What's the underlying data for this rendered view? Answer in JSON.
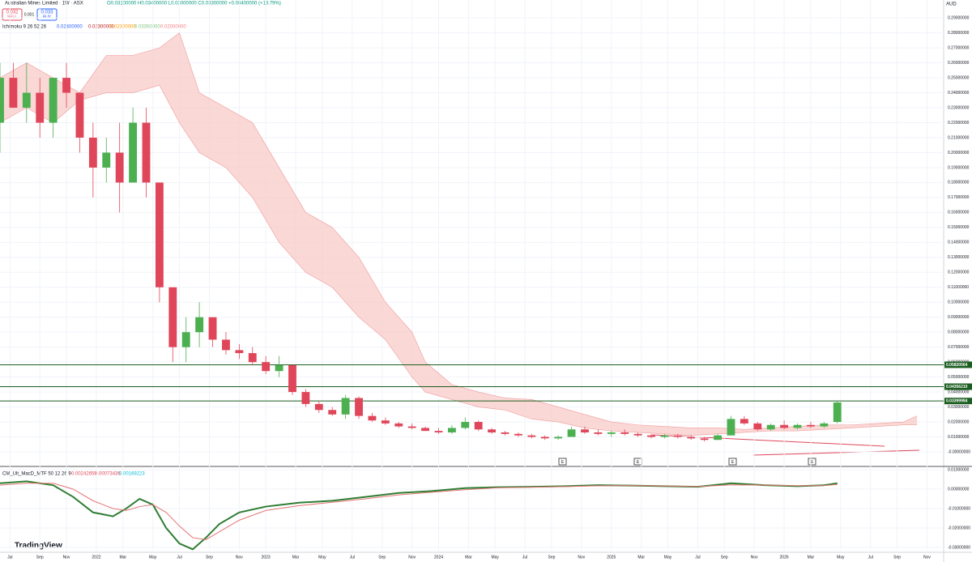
{
  "header": {
    "title": "Australian Mines Limited · 1W · ASX",
    "ohlc": "O0.03100000 H0.03400000 L0.03000000 C0.03300000 +0.00400000 (+13.79%)",
    "sell_price": "0.032",
    "sell": "SELL",
    "spread": "0.001",
    "buy_price": "0.033",
    "buy": "BUY",
    "currency": "AUD"
  },
  "ichimoku_legend": {
    "name": "Ichimoku 9 26 52 26",
    "values": [
      "0.02400000",
      "0.02300000",
      "0.02300000",
      "0.03350000",
      "0.02000000"
    ]
  },
  "macd_legend": {
    "name": "CM_Ult_MacD_MTF 50 12 26 9",
    "values": [
      "0.00242659",
      "0.00073436",
      "0.00169223"
    ]
  },
  "events": [
    "E",
    "E",
    "E",
    "E"
  ],
  "logo": "TradingView",
  "chart_data": [
    {
      "type": "candlestick",
      "up_color": "#4caf50",
      "down_color": "#e0465a",
      "xlim": [
        0,
        284
      ],
      "ylim": [
        -0.0092,
        0.302
      ],
      "xticks": [
        {
          "value": 3,
          "label": "Jul"
        },
        {
          "value": 12,
          "label": "Sep"
        },
        {
          "value": 20,
          "label": "Nov"
        },
        {
          "value": 29,
          "label": "2022"
        },
        {
          "value": 37,
          "label": "Mar"
        },
        {
          "value": 46,
          "label": "May"
        },
        {
          "value": 54,
          "label": "Jul"
        },
        {
          "value": 63,
          "label": "Sep"
        },
        {
          "value": 72,
          "label": "Nov"
        },
        {
          "value": 80,
          "label": "2023"
        },
        {
          "value": 89,
          "label": "Mar"
        },
        {
          "value": 97,
          "label": "May"
        },
        {
          "value": 106,
          "label": "Jul"
        },
        {
          "value": 115,
          "label": "Sep"
        },
        {
          "value": 124,
          "label": "Nov"
        },
        {
          "value": 132,
          "label": "2024"
        },
        {
          "value": 141,
          "label": "Mar"
        },
        {
          "value": 149,
          "label": "May"
        },
        {
          "value": 158,
          "label": "Jul"
        },
        {
          "value": 166,
          "label": "Sep"
        },
        {
          "value": 175,
          "label": "Nov"
        },
        {
          "value": 184,
          "label": "2025"
        },
        {
          "value": 193,
          "label": "Mar"
        },
        {
          "value": 201,
          "label": "May"
        },
        {
          "value": 210,
          "label": "Jul"
        },
        {
          "value": 218,
          "label": "Sep"
        },
        {
          "value": 227,
          "label": "Nov"
        },
        {
          "value": 236,
          "label": "2026"
        },
        {
          "value": 244,
          "label": "Mar"
        },
        {
          "value": 253,
          "label": "May"
        },
        {
          "value": 262,
          "label": "Jul"
        },
        {
          "value": 270,
          "label": "Sep"
        },
        {
          "value": 279,
          "label": "Nov"
        }
      ],
      "yticks": [
        {
          "value": 0.29,
          "label": "0.29000000"
        },
        {
          "value": 0.28,
          "label": "0.28000000"
        },
        {
          "value": 0.27,
          "label": "0.27000000"
        },
        {
          "value": 0.26,
          "label": "0.26000000"
        },
        {
          "value": 0.25,
          "label": "0.25000000"
        },
        {
          "value": 0.24,
          "label": "0.24000000"
        },
        {
          "value": 0.23,
          "label": "0.23000000"
        },
        {
          "value": 0.22,
          "label": "0.22000000"
        },
        {
          "value": 0.21,
          "label": "0.21000000"
        },
        {
          "value": 0.2,
          "label": "0.20000000"
        },
        {
          "value": 0.19,
          "label": "0.19000000"
        },
        {
          "value": 0.18,
          "label": "0.18000000"
        },
        {
          "value": 0.17,
          "label": "0.17000000"
        },
        {
          "value": 0.16,
          "label": "0.16000000"
        },
        {
          "value": 0.15,
          "label": "0.15000000"
        },
        {
          "value": 0.14,
          "label": "0.14000000"
        },
        {
          "value": 0.13,
          "label": "0.13000000"
        },
        {
          "value": 0.12,
          "label": "0.12000000"
        },
        {
          "value": 0.11,
          "label": "0.11000000"
        },
        {
          "value": 0.1,
          "label": "0.10000000"
        },
        {
          "value": 0.09,
          "label": "0.09000000"
        },
        {
          "value": 0.08,
          "label": "0.08000000"
        },
        {
          "value": 0.07,
          "label": "0.07000000"
        },
        {
          "value": 0.06,
          "label": "0.06000000"
        },
        {
          "value": 0.05,
          "label": "0.05000000"
        },
        {
          "value": 0.04,
          "label": "0.04000000"
        },
        {
          "value": 0.03,
          "label": "0.03000000"
        },
        {
          "value": 0.02,
          "label": "0.02000000"
        },
        {
          "value": 0.01,
          "label": "0.01000000"
        },
        {
          "value": 0,
          "label": "-0.00000000"
        }
      ],
      "levels": [
        0.05820564,
        {
          "value": 0.0435621,
          "label": "0.04356210"
        },
        0.03399994
      ],
      "level_color": "#1b5e20",
      "x": [
        0,
        4,
        8,
        12,
        16,
        20,
        24,
        28,
        32,
        36,
        40,
        44,
        48,
        52,
        56,
        60,
        64,
        68,
        72,
        76,
        80,
        84,
        88,
        92,
        96,
        100,
        104,
        108,
        112,
        116,
        120,
        124,
        128,
        132,
        136,
        140,
        144,
        148,
        152,
        156,
        160,
        164,
        168,
        172,
        176,
        180,
        184,
        188,
        192,
        196,
        200,
        204,
        208,
        212,
        216,
        220,
        224,
        228,
        232,
        236,
        240,
        244,
        248,
        252
      ],
      "open": [
        0.22,
        0.25,
        0.23,
        0.24,
        0.22,
        0.25,
        0.24,
        0.21,
        0.19,
        0.2,
        0.18,
        0.22,
        0.18,
        0.11,
        0.07,
        0.08,
        0.09,
        0.075,
        0.068,
        0.066,
        0.06,
        0.054,
        0.058,
        0.04,
        0.032,
        0.028,
        0.025,
        0.036,
        0.024,
        0.021,
        0.019,
        0.017,
        0.016,
        0.014,
        0.013,
        0.016,
        0.02,
        0.015,
        0.013,
        0.012,
        0.011,
        0.01,
        0.009,
        0.01,
        0.015,
        0.013,
        0.012,
        0.013,
        0.012,
        0.011,
        0.01,
        0.011,
        0.01,
        0.009,
        0.008,
        0.011,
        0.022,
        0.019,
        0.015,
        0.018,
        0.016,
        0.018,
        0.017,
        0.02
      ],
      "high": [
        0.26,
        0.26,
        0.26,
        0.25,
        0.25,
        0.26,
        0.24,
        0.22,
        0.21,
        0.22,
        0.23,
        0.23,
        0.18,
        0.11,
        0.09,
        0.1,
        0.09,
        0.08,
        0.072,
        0.07,
        0.064,
        0.064,
        0.058,
        0.042,
        0.034,
        0.03,
        0.038,
        0.037,
        0.026,
        0.023,
        0.02,
        0.019,
        0.017,
        0.016,
        0.018,
        0.023,
        0.021,
        0.016,
        0.014,
        0.013,
        0.012,
        0.011,
        0.011,
        0.017,
        0.017,
        0.015,
        0.014,
        0.015,
        0.013,
        0.012,
        0.012,
        0.012,
        0.011,
        0.01,
        0.012,
        0.024,
        0.024,
        0.02,
        0.019,
        0.021,
        0.019,
        0.02,
        0.02,
        0.034
      ],
      "low": [
        0.2,
        0.23,
        0.22,
        0.21,
        0.21,
        0.23,
        0.2,
        0.17,
        0.18,
        0.16,
        0.18,
        0.17,
        0.1,
        0.06,
        0.06,
        0.07,
        0.07,
        0.065,
        0.062,
        0.058,
        0.052,
        0.05,
        0.038,
        0.03,
        0.026,
        0.024,
        0.022,
        0.022,
        0.02,
        0.018,
        0.016,
        0.015,
        0.014,
        0.012,
        0.012,
        0.015,
        0.014,
        0.012,
        0.011,
        0.01,
        0.009,
        0.008,
        0.008,
        0.01,
        0.012,
        0.011,
        0.01,
        0.011,
        0.01,
        0.009,
        0.009,
        0.009,
        0.008,
        0.007,
        0.008,
        0.011,
        0.018,
        0.014,
        0.014,
        0.015,
        0.015,
        0.016,
        0.016,
        0.019
      ],
      "close": [
        0.25,
        0.23,
        0.24,
        0.22,
        0.25,
        0.24,
        0.21,
        0.19,
        0.2,
        0.18,
        0.22,
        0.18,
        0.11,
        0.07,
        0.08,
        0.09,
        0.075,
        0.068,
        0.066,
        0.06,
        0.054,
        0.058,
        0.04,
        0.032,
        0.028,
        0.025,
        0.036,
        0.024,
        0.021,
        0.019,
        0.017,
        0.016,
        0.014,
        0.013,
        0.016,
        0.02,
        0.015,
        0.013,
        0.012,
        0.011,
        0.01,
        0.009,
        0.01,
        0.015,
        0.013,
        0.012,
        0.013,
        0.012,
        0.011,
        0.01,
        0.011,
        0.01,
        0.009,
        0.008,
        0.011,
        0.022,
        0.019,
        0.015,
        0.018,
        0.016,
        0.018,
        0.017,
        0.019,
        0.033
      ],
      "cloud": {
        "color": "#f8c8c4",
        "x": [
          0,
          8,
          16,
          24,
          32,
          40,
          48,
          54,
          60,
          68,
          76,
          84,
          92,
          100,
          108,
          116,
          124,
          128,
          136,
          144,
          152,
          160,
          168,
          176,
          184,
          192,
          200,
          208,
          216,
          224,
          232,
          240,
          248,
          256,
          264,
          272,
          276
        ],
        "span_a": [
          0.25,
          0.26,
          0.25,
          0.24,
          0.265,
          0.265,
          0.27,
          0.28,
          0.24,
          0.23,
          0.22,
          0.19,
          0.16,
          0.15,
          0.13,
          0.1,
          0.08,
          0.06,
          0.045,
          0.04,
          0.036,
          0.035,
          0.03,
          0.025,
          0.02,
          0.018,
          0.017,
          0.016,
          0.016,
          0.015,
          0.016,
          0.017,
          0.018,
          0.018,
          0.019,
          0.02,
          0.024
        ],
        "span_b": [
          0.22,
          0.23,
          0.22,
          0.235,
          0.24,
          0.24,
          0.245,
          0.22,
          0.2,
          0.19,
          0.17,
          0.14,
          0.12,
          0.11,
          0.09,
          0.075,
          0.05,
          0.04,
          0.035,
          0.03,
          0.028,
          0.022,
          0.02,
          0.016,
          0.014,
          0.013,
          0.012,
          0.011,
          0.012,
          0.013,
          0.014,
          0.014,
          0.015,
          0.016,
          0.017,
          0.018,
          0.018
        ]
      }
    },
    {
      "type": "line",
      "xlim": [
        0,
        284
      ],
      "ylim": [
        -0.0317,
        0.01125
      ],
      "yticks": [
        {
          "value": 0.01,
          "label": "0.01000000"
        },
        {
          "value": 0,
          "label": "0.00000000"
        },
        {
          "value": -0.01,
          "label": "-0.01000000"
        },
        {
          "value": -0.02,
          "label": "-0.02000000"
        },
        {
          "value": -0.03,
          "label": "-0.03000000"
        }
      ],
      "x": [
        0,
        8,
        16,
        22,
        28,
        34,
        38,
        42,
        46,
        50,
        54,
        58,
        62,
        66,
        72,
        80,
        90,
        100,
        110,
        120,
        130,
        140,
        150,
        160,
        170,
        180,
        190,
        200,
        210,
        220,
        230,
        240,
        248,
        252
      ],
      "series": [
        {
          "color": "#2e7d32",
          "values": [
            0.003,
            0.004,
            0.002,
            -0.004,
            -0.012,
            -0.014,
            -0.01,
            -0.005,
            -0.008,
            -0.02,
            -0.028,
            -0.031,
            -0.025,
            -0.018,
            -0.012,
            -0.009,
            -0.007,
            -0.006,
            -0.004,
            -0.002,
            -0.001,
            0.0005,
            0.001,
            0.0012,
            0.0015,
            0.002,
            0.0018,
            0.0015,
            0.0012,
            0.003,
            0.002,
            0.0015,
            0.002,
            0.003
          ]
        },
        {
          "color": "#e57373",
          "values": [
            0.002,
            0.003,
            0.003,
            0,
            -0.006,
            -0.01,
            -0.011,
            -0.009,
            -0.008,
            -0.012,
            -0.019,
            -0.025,
            -0.026,
            -0.022,
            -0.016,
            -0.011,
            -0.0085,
            -0.0068,
            -0.005,
            -0.003,
            -0.0016,
            -0.0003,
            0.0007,
            0.001,
            0.0013,
            0.0017,
            0.0018,
            0.0016,
            0.0013,
            0.0022,
            0.0021,
            0.0017,
            0.0018,
            0.0024
          ]
        }
      ]
    }
  ]
}
